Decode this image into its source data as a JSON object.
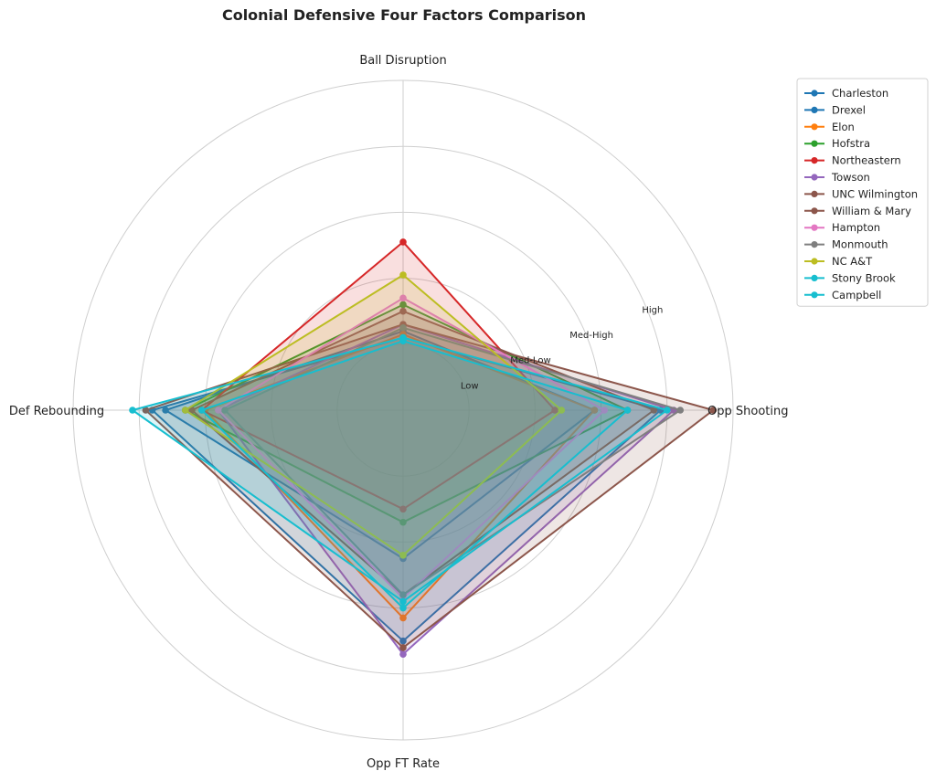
{
  "chart_data": {
    "type": "radar",
    "title": "Colonial Defensive Four Factors Comparison",
    "axes": [
      "Opp Shooting",
      "Ball Disruption",
      "Def Rebounding",
      "Opp FT Rate"
    ],
    "rlim": [
      0,
      5
    ],
    "ticks": [
      {
        "value": 1,
        "label": "Low"
      },
      {
        "value": 2,
        "label": "Med-Low"
      },
      {
        "value": 3,
        "label": "Med-High"
      },
      {
        "value": 4,
        "label": "High"
      },
      {
        "value": 5,
        "label": ""
      }
    ],
    "grid": true,
    "legend_position": "top-right",
    "series": [
      {
        "name": "Charleston",
        "color": "#1f77b4",
        "values": [
          3.9,
          1.1,
          3.8,
          3.5
        ]
      },
      {
        "name": "Drexel",
        "color": "#1f77b4",
        "values": [
          2.9,
          1.2,
          3.6,
          2.25
        ]
      },
      {
        "name": "Elon",
        "color": "#ff7f0e",
        "values": [
          2.9,
          1.15,
          3.0,
          3.15
        ]
      },
      {
        "name": "Hofstra",
        "color": "#2ca02c",
        "values": [
          3.4,
          1.6,
          3.3,
          1.7
        ]
      },
      {
        "name": "Northeastern",
        "color": "#d62728",
        "values": [
          2.3,
          2.55,
          3.05,
          1.5
        ]
      },
      {
        "name": "Towson",
        "color": "#9467bd",
        "values": [
          4.1,
          1.3,
          2.8,
          3.7
        ]
      },
      {
        "name": "UNC Wilmington",
        "color": "#8c564b",
        "values": [
          4.7,
          1.3,
          3.9,
          3.6
        ]
      },
      {
        "name": "William & Mary",
        "color": "#8c564b",
        "values": [
          3.8,
          1.5,
          3.2,
          2.8
        ]
      },
      {
        "name": "Hampton",
        "color": "#e377c2",
        "values": [
          3.05,
          1.7,
          2.8,
          2.85
        ]
      },
      {
        "name": "Monmouth",
        "color": "#7f7f7f",
        "values": [
          4.2,
          1.25,
          2.7,
          2.8
        ]
      },
      {
        "name": "NC A&T",
        "color": "#bcbd22",
        "values": [
          2.4,
          2.05,
          3.3,
          2.2
        ]
      },
      {
        "name": "Stony Brook",
        "color": "#17becf",
        "values": [
          4.0,
          1.1,
          4.1,
          2.9
        ]
      },
      {
        "name": "Campbell",
        "color": "#17becf",
        "values": [
          3.4,
          1.05,
          3.05,
          3.0
        ]
      }
    ]
  }
}
